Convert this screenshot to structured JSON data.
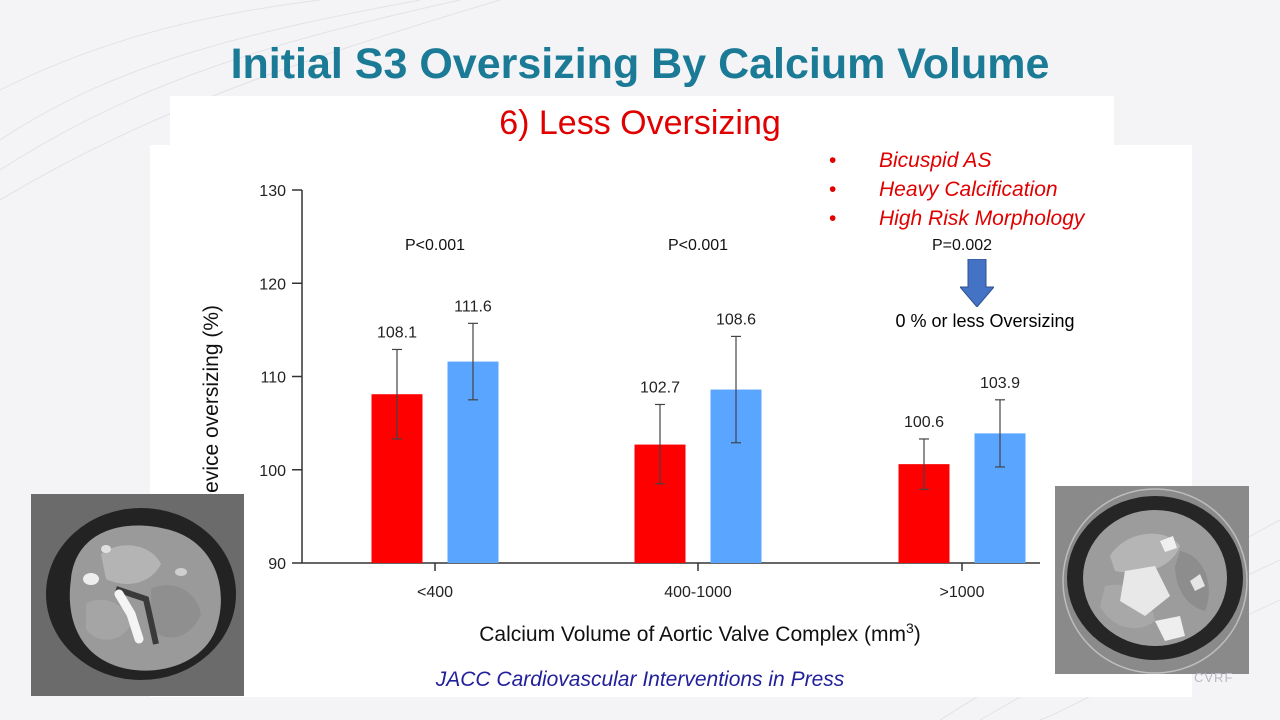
{
  "slide": {
    "title": "Initial S3 Oversizing By Calcium Volume",
    "subtitle": "6) Less Oversizing",
    "bullets": [
      "Bicuspid AS",
      "Heavy Calcification",
      "High Risk Morphology"
    ],
    "bullet_marker": "•",
    "arrow_note": "0 % or less Oversizing",
    "citation": "JACC Cardiovascular Interventions in Press",
    "logo_text": "CVRF",
    "left_image_label": "axial CT of calcified aortic valve",
    "right_image_label": "axial CT of calcified aortic valve"
  },
  "chart_data": {
    "type": "bar",
    "categories": [
      "<400",
      "400-1000",
      ">1000"
    ],
    "series": [
      {
        "color": "#ff0000",
        "values": [
          108.1,
          102.7,
          100.6
        ],
        "err_low": [
          103.3,
          98.5,
          97.9
        ],
        "err_high": [
          112.9,
          107.0,
          103.3
        ]
      },
      {
        "color": "#59a5ff",
        "values": [
          111.6,
          108.6,
          103.9
        ],
        "err_low": [
          107.5,
          102.9,
          100.3
        ],
        "err_high": [
          115.7,
          114.3,
          107.5
        ]
      }
    ],
    "p_values": [
      "P<0.001",
      "P<0.001",
      "P=0.002"
    ],
    "ylabel": "Device oversizing (%)",
    "xlabel_main": "Calcium  Volume of Aortic Valve Complex (mm",
    "xlabel_sup": "3",
    "xlabel_close": ")",
    "yticks": [
      90,
      100,
      110,
      120,
      130
    ],
    "ylim": [
      90,
      130
    ],
    "grid": false
  }
}
